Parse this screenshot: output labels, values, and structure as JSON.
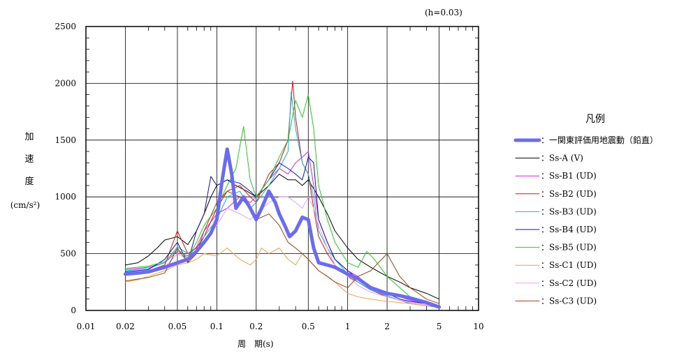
{
  "chart_data": {
    "type": "line",
    "damping_note": "(h=0.03)",
    "xlabel": "周　期(s)",
    "ylabel_chars": [
      "加",
      "速",
      "度"
    ],
    "ylabel_unit": "(cm/s²)",
    "x_scale": "log",
    "xlim": [
      0.01,
      10
    ],
    "ylim": [
      0,
      2500
    ],
    "x_ticks": [
      0.01,
      0.02,
      0.05,
      0.1,
      0.2,
      0.5,
      1,
      2,
      5,
      10
    ],
    "x_tick_labels": [
      "0.01",
      "0.02",
      "0.05",
      "0.1",
      "0.2",
      "0.5",
      "1",
      "2",
      "5",
      "10"
    ],
    "y_ticks": [
      0,
      500,
      1000,
      1500,
      2000,
      2500
    ],
    "y_tick_labels": [
      "0",
      "500",
      "1000",
      "1500",
      "2000",
      "2500"
    ],
    "grid": true,
    "legend_title": "凡例",
    "legend_position": "right",
    "series": [
      {
        "name": "：一関東評価用地震動（鉛直）",
        "color": "#6b6bf0",
        "width": 5,
        "x": [
          0.02,
          0.025,
          0.03,
          0.04,
          0.05,
          0.06,
          0.07,
          0.08,
          0.09,
          0.1,
          0.11,
          0.12,
          0.13,
          0.14,
          0.15,
          0.16,
          0.18,
          0.2,
          0.22,
          0.25,
          0.28,
          0.3,
          0.33,
          0.36,
          0.4,
          0.45,
          0.5,
          0.55,
          0.6,
          0.7,
          0.8,
          1.0,
          1.2,
          1.5,
          2.0,
          2.5,
          3.0,
          4.0,
          5.0
        ],
        "y": [
          320,
          330,
          340,
          380,
          420,
          450,
          520,
          600,
          680,
          800,
          1150,
          1420,
          1200,
          900,
          950,
          1000,
          900,
          800,
          900,
          1050,
          950,
          850,
          750,
          650,
          700,
          820,
          800,
          550,
          420,
          400,
          380,
          320,
          280,
          200,
          150,
          130,
          110,
          70,
          30
        ]
      },
      {
        "name": "：Ss-A (V)",
        "color": "#000000",
        "width": 1,
        "x": [
          0.02,
          0.025,
          0.03,
          0.035,
          0.04,
          0.05,
          0.06,
          0.07,
          0.08,
          0.09,
          0.1,
          0.12,
          0.14,
          0.17,
          0.2,
          0.25,
          0.3,
          0.35,
          0.4,
          0.45,
          0.5,
          0.6,
          0.7,
          0.8,
          1.0,
          1.2,
          1.5,
          2.0,
          2.5,
          3.0,
          4.0,
          5.0
        ],
        "y": [
          400,
          420,
          480,
          550,
          620,
          650,
          580,
          700,
          850,
          1000,
          1100,
          1150,
          1100,
          1050,
          1000,
          1100,
          1200,
          1150,
          1150,
          1100,
          1150,
          1000,
          850,
          700,
          550,
          450,
          380,
          300,
          250,
          200,
          150,
          100
        ]
      },
      {
        "name": "：Ss-B1 (UD)",
        "color": "#e020e0",
        "width": 1,
        "x": [
          0.02,
          0.03,
          0.04,
          0.05,
          0.06,
          0.07,
          0.08,
          0.1,
          0.12,
          0.15,
          0.18,
          0.2,
          0.25,
          0.3,
          0.35,
          0.4,
          0.45,
          0.5,
          0.55,
          0.6,
          0.7,
          0.8,
          1.0,
          1.2,
          1.5,
          2.0,
          2.5,
          3.0,
          4.0,
          5.0
        ],
        "y": [
          360,
          380,
          420,
          520,
          480,
          560,
          700,
          850,
          900,
          1000,
          950,
          1000,
          1150,
          1250,
          1200,
          1300,
          1350,
          1400,
          1100,
          800,
          600,
          450,
          350,
          300,
          200,
          150,
          120,
          90,
          60,
          40
        ]
      },
      {
        "name": "：Ss-B2 (UD)",
        "color": "#e01010",
        "width": 1,
        "x": [
          0.02,
          0.03,
          0.04,
          0.05,
          0.06,
          0.07,
          0.08,
          0.1,
          0.12,
          0.15,
          0.18,
          0.2,
          0.25,
          0.3,
          0.35,
          0.38,
          0.4,
          0.45,
          0.5,
          0.55,
          0.6,
          0.7,
          0.8,
          1.0,
          1.2,
          1.5,
          2.0,
          2.5,
          3.0,
          4.0,
          5.0
        ],
        "y": [
          330,
          350,
          400,
          700,
          500,
          550,
          650,
          900,
          1050,
          1100,
          1000,
          950,
          1200,
          1300,
          1500,
          2020,
          1700,
          1300,
          1200,
          900,
          650,
          500,
          400,
          300,
          250,
          180,
          120,
          90,
          70,
          50,
          30
        ]
      },
      {
        "name": "：Ss-B3 (UD)",
        "color": "#10b0e0",
        "width": 1,
        "x": [
          0.02,
          0.03,
          0.04,
          0.05,
          0.06,
          0.07,
          0.08,
          0.1,
          0.12,
          0.15,
          0.18,
          0.2,
          0.25,
          0.3,
          0.35,
          0.37,
          0.4,
          0.45,
          0.5,
          0.55,
          0.6,
          0.7,
          0.8,
          1.0,
          1.2,
          1.5,
          2.0,
          2.5,
          3.0,
          4.0,
          5.0
        ],
        "y": [
          350,
          370,
          420,
          560,
          500,
          520,
          650,
          800,
          1000,
          1050,
          900,
          950,
          1100,
          1250,
          1400,
          1920,
          1600,
          1300,
          1200,
          1000,
          700,
          550,
          450,
          320,
          250,
          180,
          130,
          90,
          60,
          40,
          25
        ]
      },
      {
        "name": "：Ss-B4 (UD)",
        "color": "#1010c0",
        "width": 1,
        "x": [
          0.02,
          0.03,
          0.04,
          0.05,
          0.06,
          0.07,
          0.08,
          0.09,
          0.1,
          0.12,
          0.15,
          0.18,
          0.2,
          0.25,
          0.3,
          0.35,
          0.4,
          0.45,
          0.5,
          0.55,
          0.6,
          0.7,
          0.8,
          1.0,
          1.2,
          1.5,
          2.0,
          2.5,
          3.0,
          4.0,
          5.0
        ],
        "y": [
          340,
          360,
          450,
          600,
          420,
          700,
          850,
          1180,
          1100,
          1150,
          1120,
          1050,
          1000,
          1150,
          1300,
          1250,
          1200,
          1150,
          1350,
          1300,
          800,
          600,
          450,
          350,
          280,
          200,
          150,
          100,
          80,
          60,
          40
        ]
      },
      {
        "name": "：Ss-B5 (UD)",
        "color": "#20d020",
        "width": 1,
        "x": [
          0.02,
          0.03,
          0.04,
          0.05,
          0.06,
          0.07,
          0.08,
          0.1,
          0.12,
          0.14,
          0.16,
          0.18,
          0.2,
          0.25,
          0.3,
          0.35,
          0.4,
          0.45,
          0.5,
          0.55,
          0.6,
          0.7,
          0.8,
          1.0,
          1.2,
          1.4,
          1.6,
          2.0,
          2.5,
          3.0,
          4.0,
          5.0
        ],
        "y": [
          370,
          390,
          430,
          540,
          460,
          600,
          750,
          900,
          1100,
          1250,
          1620,
          1150,
          1000,
          1150,
          1350,
          1500,
          1850,
          1700,
          1900,
          1600,
          1100,
          800,
          600,
          420,
          380,
          520,
          450,
          300,
          200,
          120,
          70,
          40
        ]
      },
      {
        "name": "：Ss-C1 (UD)",
        "color": "#f0a050",
        "width": 1,
        "x": [
          0.02,
          0.025,
          0.03,
          0.04,
          0.05,
          0.06,
          0.07,
          0.08,
          0.1,
          0.12,
          0.15,
          0.18,
          0.2,
          0.22,
          0.25,
          0.3,
          0.35,
          0.4,
          0.45,
          0.5,
          0.6,
          0.7,
          0.8,
          1.0,
          1.2,
          1.5,
          2.0,
          2.5,
          3.0,
          4.0,
          5.0
        ],
        "y": [
          250,
          270,
          300,
          350,
          400,
          420,
          450,
          500,
          480,
          550,
          450,
          400,
          450,
          550,
          500,
          550,
          450,
          400,
          500,
          450,
          350,
          300,
          250,
          150,
          120,
          100,
          80,
          70,
          60,
          40,
          30
        ]
      },
      {
        "name": "：Ss-C2 (UD)",
        "color": "#f0a0f0",
        "width": 1,
        "x": [
          0.02,
          0.03,
          0.04,
          0.05,
          0.06,
          0.07,
          0.08,
          0.1,
          0.12,
          0.15,
          0.18,
          0.2,
          0.25,
          0.3,
          0.35,
          0.4,
          0.45,
          0.5,
          0.55,
          0.6,
          0.7,
          0.8,
          1.0,
          1.2,
          1.5,
          2.0,
          2.5,
          3.0,
          4.0,
          5.0
        ],
        "y": [
          320,
          340,
          380,
          500,
          450,
          520,
          600,
          750,
          900,
          850,
          800,
          850,
          950,
          1000,
          1000,
          950,
          900,
          1000,
          900,
          750,
          550,
          400,
          300,
          220,
          160,
          120,
          90,
          70,
          50,
          30
        ]
      },
      {
        "name": "：Ss-C3 (UD)",
        "color": "#a04010",
        "width": 1,
        "x": [
          0.02,
          0.03,
          0.04,
          0.05,
          0.06,
          0.07,
          0.08,
          0.1,
          0.12,
          0.15,
          0.18,
          0.2,
          0.25,
          0.3,
          0.35,
          0.4,
          0.45,
          0.5,
          0.6,
          0.7,
          0.8,
          1.0,
          1.2,
          1.5,
          2.0,
          2.5,
          3.0,
          4.0,
          5.0
        ],
        "y": [
          260,
          290,
          330,
          550,
          420,
          500,
          700,
          950,
          1050,
          1000,
          900,
          800,
          850,
          750,
          600,
          550,
          500,
          450,
          350,
          300,
          250,
          200,
          300,
          350,
          500,
          300,
          200,
          100,
          60
        ]
      }
    ]
  }
}
